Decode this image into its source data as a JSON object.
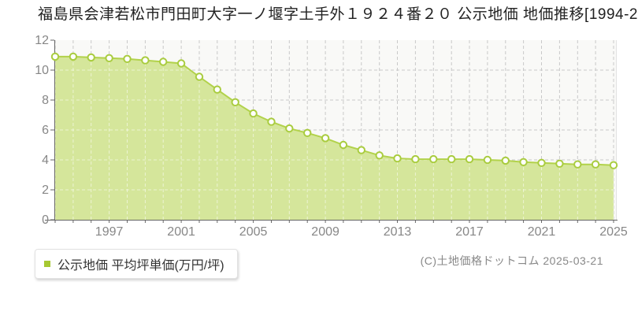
{
  "title": "福島県会津若松市門田町大字一ノ堰字土手外１９２４番２０ 公示地価 地価推移[1994-2",
  "legend": {
    "label": "公示地価 平均坪単価(万円/坪)",
    "marker_color": "#a6c832"
  },
  "footer": {
    "copyright": "(C)土地価格ドットコム 2025-03-21"
  },
  "chart_data": {
    "type": "area",
    "title": "公示地価 地価推移",
    "xlabel": "",
    "ylabel": "平均坪単価(万円/坪)",
    "x": [
      1994,
      1995,
      1996,
      1997,
      1998,
      1999,
      2000,
      2001,
      2002,
      2003,
      2004,
      2005,
      2006,
      2007,
      2008,
      2009,
      2010,
      2011,
      2012,
      2013,
      2014,
      2015,
      2016,
      2017,
      2018,
      2019,
      2020,
      2021,
      2022,
      2023,
      2024,
      2025
    ],
    "series": [
      {
        "name": "公示地価 平均坪単価(万円/坪)",
        "values": [
          10.9,
          10.9,
          10.85,
          10.8,
          10.75,
          10.65,
          10.55,
          10.45,
          9.55,
          8.7,
          7.85,
          7.1,
          6.55,
          6.1,
          5.8,
          5.45,
          5.0,
          4.65,
          4.3,
          4.1,
          4.05,
          4.05,
          4.05,
          4.05,
          4.0,
          3.95,
          3.85,
          3.8,
          3.75,
          3.7,
          3.7,
          3.65
        ]
      }
    ],
    "ylim": [
      0,
      12
    ],
    "yticks": [
      0,
      2,
      4,
      6,
      8,
      10,
      12
    ],
    "xticks_labeled": [
      1997,
      2001,
      2005,
      2009,
      2013,
      2017,
      2021,
      2025
    ],
    "grid": true,
    "grid_style": "dashed",
    "legend_position": "bottom-left",
    "colors": {
      "area_fill": "#d5e69b",
      "line": "#b2d24b",
      "marker_fill": "#ffffff",
      "marker_stroke": "#a9cc3f",
      "plot_bg": "#f9f9f7",
      "grid": "#c9c9c9",
      "grid_inside_area": "rgba(255,255,255,0.55)",
      "axis": "#666666",
      "tick_label": "#878787",
      "right_border": "#e2e2e2"
    }
  }
}
